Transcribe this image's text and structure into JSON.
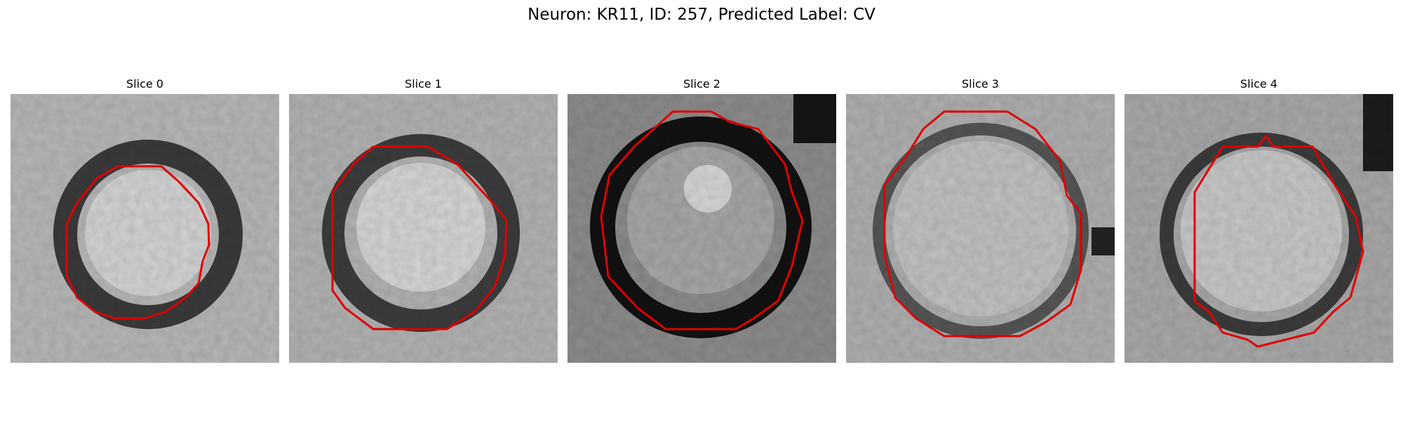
{
  "title": "Neuron: KR11, ID: 257, Predicted Label: CV",
  "colors": {
    "background": "#ffffff",
    "contour": "#ff0000",
    "grayscale_dark": "#000000",
    "grayscale_light": "#ffffff"
  },
  "panels": [
    {
      "title": "Slice 0"
    },
    {
      "title": "Slice 1"
    },
    {
      "title": "Slice 2"
    },
    {
      "title": "Slice 3"
    },
    {
      "title": "Slice 4"
    }
  ]
}
